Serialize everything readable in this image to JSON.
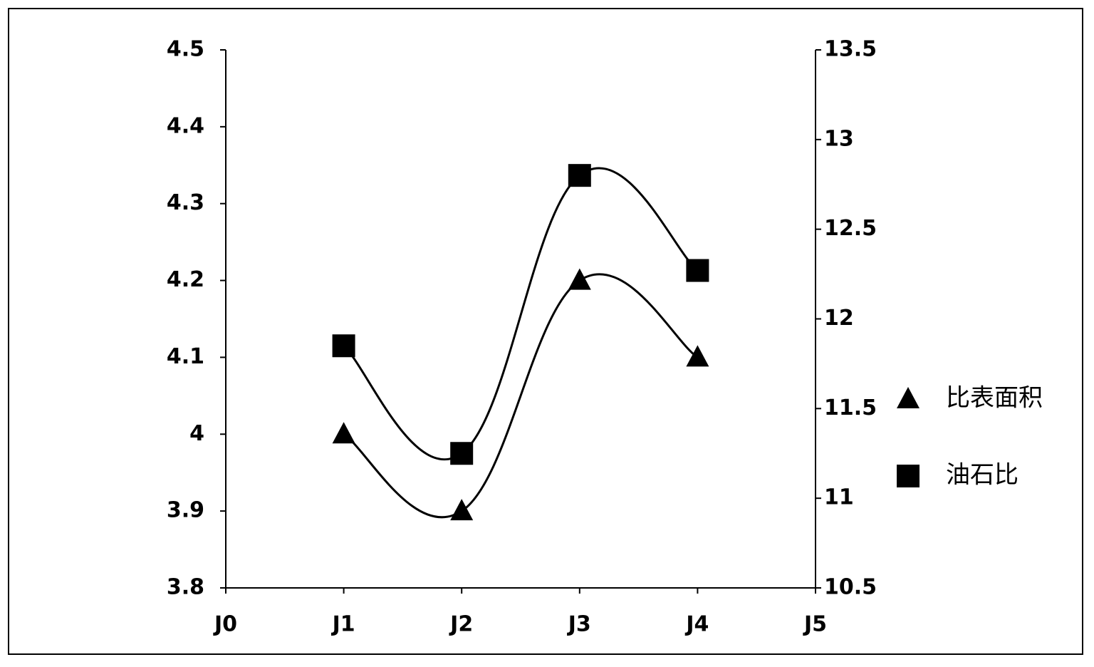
{
  "chart_data": {
    "type": "line",
    "categories": [
      "J0",
      "J1",
      "J2",
      "J3",
      "J4",
      "J5"
    ],
    "series": [
      {
        "name": "比表面积",
        "color": "#000000",
        "marker": "triangle",
        "values": [
          null,
          4.0,
          3.9,
          4.2,
          4.1,
          null
        ]
      },
      {
        "name": "油石比",
        "color": "#000000",
        "marker": "square",
        "axis": "y2",
        "values": [
          null,
          11.85,
          11.25,
          12.8,
          12.27,
          null
        ]
      }
    ],
    "ylim": [
      3.8,
      4.5
    ],
    "yticks": [
      3.8,
      3.9,
      4,
      4.1,
      4.2,
      4.3,
      4.4,
      4.5
    ],
    "y2lim": [
      10.5,
      13.5
    ],
    "y2ticks": [
      10.5,
      11,
      11.5,
      12,
      12.5,
      13,
      13.5
    ],
    "smooth": true,
    "legend": "right"
  }
}
